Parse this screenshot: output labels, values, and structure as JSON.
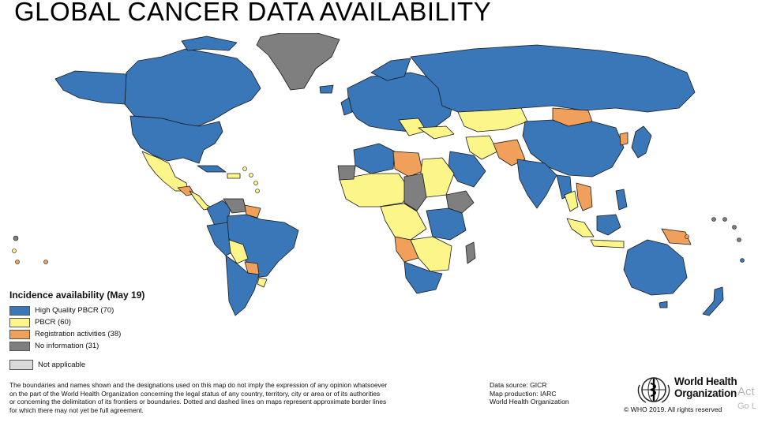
{
  "slide": {
    "title": "GLOBAL CANCER DATA AVAILABILITY"
  },
  "legend": {
    "title": "Incidence availability (May 19)",
    "items": [
      {
        "label": "High Quality PBCR (70)",
        "color": "#3a77b8"
      },
      {
        "label": "PBCR (60)",
        "color": "#fbf58a"
      },
      {
        "label": "Registration activities (38)",
        "color": "#f0a05a"
      },
      {
        "label": "No information (31)",
        "color": "#7f7f7f"
      }
    ],
    "not_applicable": {
      "label": "Not applicable",
      "color": "#d9d9d9"
    }
  },
  "disclaimer": {
    "lines": [
      "The boundaries and names shown and the designations used on this map do not imply the expression of any opinion whatsoever",
      "on the part of the World Health Organization concerning the legal status of any country, territory, city or area or of its authorities",
      "or concerning the delimitation of its frontiers or boundaries. Dotted and dashed lines on maps represent approximate border lines",
      "for which there may not yet be full agreement."
    ]
  },
  "source": {
    "lines": [
      "Data source: GICR",
      "Map production: IARC",
      "World Health Organization"
    ]
  },
  "who": {
    "name_line1": "World Health",
    "name_line2": "Organization",
    "copyright": "© WHO 2019. All rights reserved"
  },
  "watermark": {
    "line1": "Act",
    "line2": "Go L"
  },
  "icons": {
    "who_emblem": "who-emblem-icon"
  }
}
